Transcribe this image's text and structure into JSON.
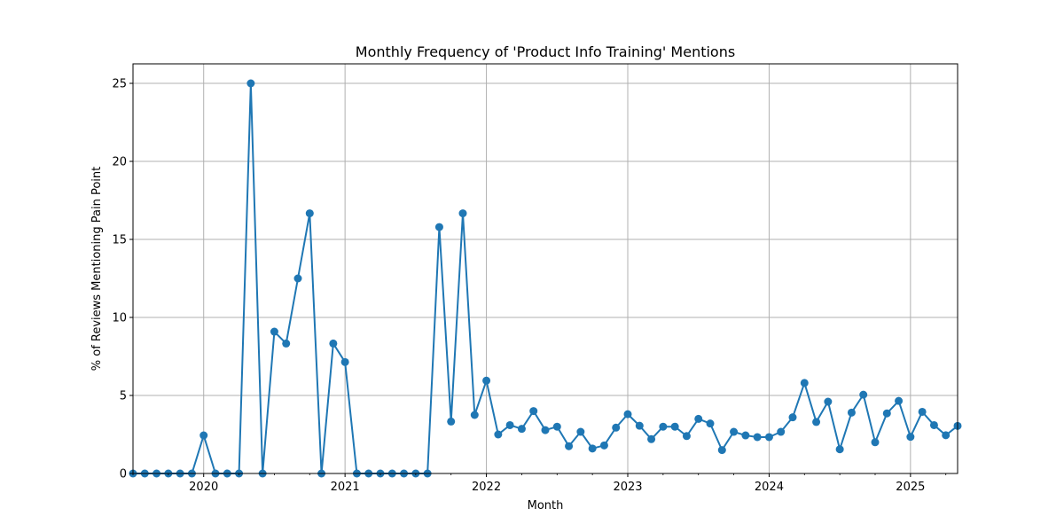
{
  "chart_data": {
    "type": "line",
    "title": "Monthly Frequency of 'Product Info Training' Mentions",
    "xlabel": "Month",
    "ylabel": "% of Reviews Mentioning Pain Point",
    "x_range": [
      "2019-07",
      "2025-05"
    ],
    "ylim": [
      0,
      26.25
    ],
    "x_ticks": [
      "2020",
      "2021",
      "2022",
      "2023",
      "2024",
      "2025"
    ],
    "y_ticks": [
      0,
      5,
      10,
      15,
      20,
      25
    ],
    "grid": true,
    "marker": "circle",
    "color": "#1f77b4",
    "series": [
      {
        "x": [
          "2019-07",
          "2019-08",
          "2019-09",
          "2019-10",
          "2019-11",
          "2019-12",
          "2020-01",
          "2020-02",
          "2020-03",
          "2020-04",
          "2020-05",
          "2020-06",
          "2020-07",
          "2020-08",
          "2020-09",
          "2020-10",
          "2020-11",
          "2020-12",
          "2021-01",
          "2021-02",
          "2021-03",
          "2021-04",
          "2021-05",
          "2021-06",
          "2021-07",
          "2021-08",
          "2021-09",
          "2021-10",
          "2021-11",
          "2021-12",
          "2022-01",
          "2022-02",
          "2022-03",
          "2022-04",
          "2022-05",
          "2022-06",
          "2022-07",
          "2022-08",
          "2022-09",
          "2022-10",
          "2022-11",
          "2022-12",
          "2023-01",
          "2023-02",
          "2023-03",
          "2023-04",
          "2023-05",
          "2023-06",
          "2023-07",
          "2023-08",
          "2023-09",
          "2023-10",
          "2023-11",
          "2023-12",
          "2024-01",
          "2024-02",
          "2024-03",
          "2024-04",
          "2024-05",
          "2024-06",
          "2024-07",
          "2024-08",
          "2024-09",
          "2024-10",
          "2024-11",
          "2024-12",
          "2025-01",
          "2025-02",
          "2025-03",
          "2025-04",
          "2025-05"
        ],
        "values": [
          0,
          0,
          0,
          0,
          0,
          0,
          2.44,
          0,
          0,
          0,
          25.0,
          0,
          9.09,
          8.33,
          12.5,
          16.67,
          0,
          8.33,
          7.14,
          0,
          0,
          0,
          0,
          0,
          0,
          0,
          15.79,
          3.33,
          16.67,
          3.75,
          5.95,
          2.5,
          3.1,
          2.86,
          4.0,
          2.78,
          3.0,
          1.75,
          2.67,
          1.6,
          1.8,
          2.94,
          3.8,
          3.06,
          2.2,
          3.0,
          3.0,
          2.4,
          3.5,
          3.2,
          1.5,
          2.67,
          2.44,
          2.33,
          2.33,
          2.67,
          3.6,
          5.8,
          3.3,
          4.6,
          1.55,
          3.9,
          5.05,
          2.0,
          3.85,
          4.65,
          2.35,
          3.95,
          3.1,
          2.45,
          3.05
        ]
      }
    ]
  }
}
